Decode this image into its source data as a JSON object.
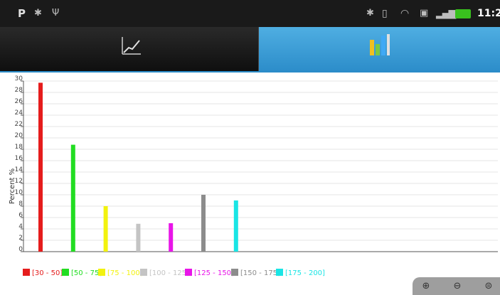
{
  "status_bar": {
    "left_icons": [
      "p-notification-icon",
      "android-debug-icon",
      "usb-icon"
    ],
    "right_icons": [
      "bluetooth-icon",
      "vibrate-icon",
      "wifi-icon",
      "sim-icon",
      "signal-icon",
      "battery-icon"
    ],
    "clock": "11:2"
  },
  "tabs": [
    {
      "icon": "line-chart-icon",
      "active": false
    },
    {
      "icon": "bar-chart-icon",
      "active": true
    }
  ],
  "chart_data": {
    "type": "bar",
    "ylabel": "Percent %",
    "ylim": [
      0,
      30
    ],
    "yticks": [
      "0",
      "2",
      "4",
      "6",
      "8",
      "10",
      "12",
      "14",
      "16",
      "18",
      "20",
      "22",
      "24",
      "26",
      "28",
      "30"
    ],
    "grid": true,
    "legend_position": "bottom",
    "series": [
      {
        "name": "[30 - 50]",
        "value": 29.7,
        "color": "#e51c1c"
      },
      {
        "name": "[50 - 75]",
        "value": 18.8,
        "color": "#22dd22"
      },
      {
        "name": "[75 - 100]",
        "value": 8.0,
        "color": "#f2f20e"
      },
      {
        "name": "[100 - 125]",
        "value": 4.9,
        "color": "#c4c4c4"
      },
      {
        "name": "[125 - 150]",
        "value": 5.0,
        "color": "#e815e8"
      },
      {
        "name": "[150 - 175]",
        "value": 10.0,
        "color": "#8c8c8c"
      },
      {
        "name": "[175 - 200]",
        "value": 9.0,
        "color": "#19e5e5"
      }
    ]
  },
  "zoom": {
    "icons": [
      "zoom-in-icon",
      "zoom-out-icon",
      "zoom-reset-icon"
    ],
    "labels": [
      "⊕",
      "⊖",
      "⊜"
    ]
  }
}
